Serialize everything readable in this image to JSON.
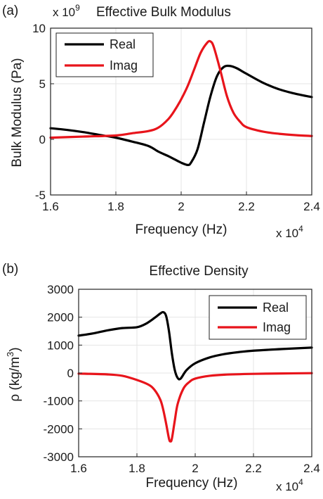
{
  "chart_data": [
    {
      "type": "line",
      "panel": "(a)",
      "title": "Effective Bulk Modulus",
      "xlabel": "Frequency (Hz)",
      "ylabel": "Bulk Modulus (Pa)",
      "x_multiplier": "x 10",
      "x_multiplier_exp": "4",
      "y_multiplier": "x 10",
      "y_multiplier_exp": "9",
      "xlim": [
        1.6,
        2.4
      ],
      "ylim": [
        -5,
        10
      ],
      "xticks": [
        1.6,
        1.8,
        2.0,
        2.2,
        2.4
      ],
      "xtick_labels": [
        "1.6",
        "1.8",
        "2",
        "2.2",
        "2.4"
      ],
      "yticks": [
        -5,
        0,
        5,
        10
      ],
      "ytick_labels": [
        "-5",
        "0",
        "5",
        "10"
      ],
      "grid": true,
      "legend_position": "top-left",
      "series": [
        {
          "name": "Real",
          "color": "#000000",
          "x": [
            1.6,
            1.65,
            1.7,
            1.75,
            1.8,
            1.85,
            1.9,
            1.93,
            1.96,
            1.98,
            2.0,
            2.02,
            2.03,
            2.05,
            2.07,
            2.09,
            2.11,
            2.13,
            2.15,
            2.17,
            2.2,
            2.25,
            2.3,
            2.35,
            2.4
          ],
          "y": [
            1.0,
            0.85,
            0.65,
            0.4,
            0.15,
            -0.2,
            -0.6,
            -1.1,
            -1.5,
            -1.8,
            -2.1,
            -2.3,
            -2.1,
            -0.9,
            1.5,
            3.9,
            5.7,
            6.5,
            6.6,
            6.4,
            5.9,
            5.1,
            4.5,
            4.1,
            3.8
          ]
        },
        {
          "name": "Imag",
          "color": "#e8141b",
          "x": [
            1.6,
            1.7,
            1.8,
            1.85,
            1.9,
            1.93,
            1.96,
            1.98,
            2.0,
            2.02,
            2.04,
            2.06,
            2.08,
            2.09,
            2.1,
            2.12,
            2.14,
            2.16,
            2.18,
            2.2,
            2.25,
            2.3,
            2.35,
            2.4
          ],
          "y": [
            0.15,
            0.25,
            0.35,
            0.55,
            0.75,
            1.05,
            1.8,
            2.6,
            3.6,
            4.8,
            6.3,
            7.8,
            8.7,
            8.8,
            8.3,
            6.2,
            3.9,
            2.4,
            1.6,
            1.1,
            0.7,
            0.5,
            0.38,
            0.3
          ]
        }
      ]
    },
    {
      "type": "line",
      "panel": "(b)",
      "title": "Effective Density",
      "xlabel": "Frequency (Hz)",
      "ylabel_main": "ρ (kg/m",
      "ylabel_sup": "3",
      "ylabel_end": ")",
      "x_multiplier": "x 10",
      "x_multiplier_exp": "4",
      "xlim": [
        1.6,
        2.4
      ],
      "ylim": [
        -3000,
        3000
      ],
      "xticks": [
        1.6,
        1.8,
        2.0,
        2.2,
        2.4
      ],
      "xtick_labels": [
        "1.6",
        "1.8",
        "2",
        "2.2",
        "2.4"
      ],
      "yticks": [
        -3000,
        -2000,
        -1000,
        0,
        1000,
        2000,
        3000
      ],
      "ytick_labels": [
        "-3000",
        "-2000",
        "-1000",
        "0",
        "1000",
        "2000",
        "3000"
      ],
      "grid": true,
      "legend_position": "top-right",
      "series": [
        {
          "name": "Real",
          "color": "#000000",
          "x": [
            1.6,
            1.65,
            1.7,
            1.75,
            1.8,
            1.83,
            1.86,
            1.88,
            1.89,
            1.9,
            1.91,
            1.92,
            1.93,
            1.94,
            1.95,
            1.97,
            2.0,
            2.05,
            2.1,
            2.15,
            2.2,
            2.3,
            2.4
          ],
          "y": [
            1340,
            1420,
            1530,
            1610,
            1640,
            1760,
            1970,
            2130,
            2180,
            2050,
            1500,
            700,
            100,
            -180,
            -200,
            100,
            350,
            560,
            680,
            750,
            800,
            860,
            910
          ]
        },
        {
          "name": "Imag",
          "color": "#e8141b",
          "x": [
            1.6,
            1.7,
            1.75,
            1.8,
            1.84,
            1.86,
            1.88,
            1.89,
            1.9,
            1.91,
            1.915,
            1.92,
            1.93,
            1.94,
            1.96,
            1.98,
            2.0,
            2.05,
            2.1,
            2.2,
            2.3,
            2.4
          ],
          "y": [
            -20,
            -50,
            -100,
            -250,
            -420,
            -600,
            -950,
            -1300,
            -1800,
            -2350,
            -2450,
            -2350,
            -1700,
            -1100,
            -550,
            -320,
            -200,
            -100,
            -60,
            -30,
            -15,
            -5
          ]
        }
      ]
    }
  ]
}
